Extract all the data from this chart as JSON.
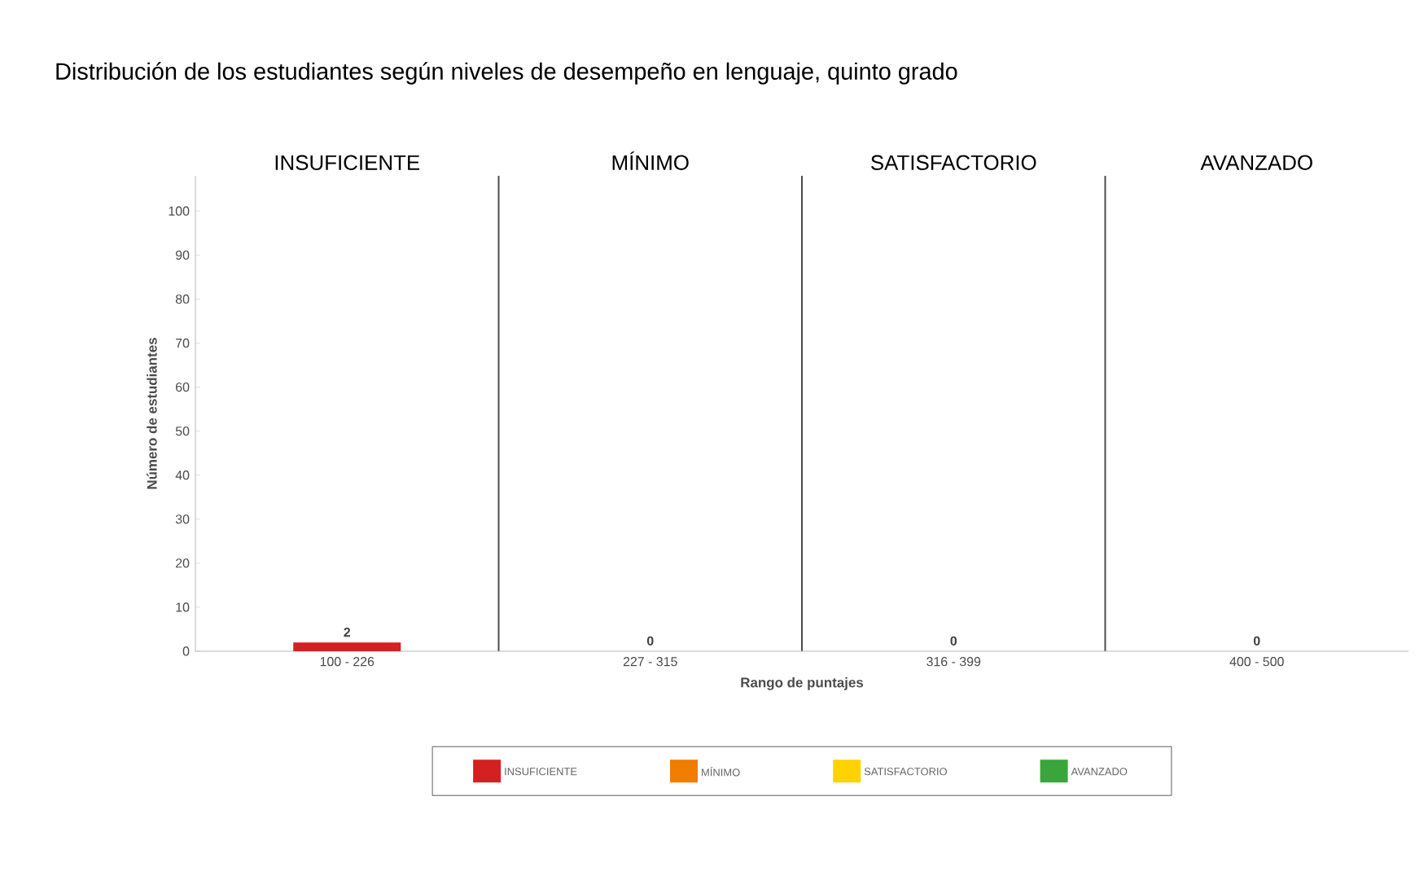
{
  "chart_data": {
    "type": "bar",
    "title": "Distribución de los estudiantes según niveles de desempeño en lenguaje, quinto grado",
    "xlabel": "Rango de puntajes",
    "ylabel": "Número de estudiantes",
    "categories": [
      "100 - 226",
      "227 - 315",
      "316 - 399",
      "400 - 500"
    ],
    "series": [
      {
        "name": "INSUFICIENTE",
        "color": "#d42020",
        "values": [
          2,
          null,
          null,
          null
        ]
      },
      {
        "name": "MÍNIMO",
        "color": "#f07c00",
        "values": [
          null,
          0,
          null,
          null
        ]
      },
      {
        "name": "SATISFACTORIO",
        "color": "#ffd200",
        "values": [
          null,
          null,
          0,
          null
        ]
      },
      {
        "name": "AVANZADO",
        "color": "#3aa53a",
        "values": [
          null,
          null,
          null,
          0
        ]
      }
    ],
    "annotations": [
      "INSUFICIENTE",
      "MÍNIMO",
      "SATISFACTORIO",
      "AVANZADO"
    ],
    "ylim": [
      0,
      108
    ],
    "yticks": [
      0,
      10,
      20,
      30,
      40,
      50,
      60,
      70,
      80,
      90,
      100
    ],
    "grid": "x",
    "legend": "bottom",
    "data_labels": true
  }
}
